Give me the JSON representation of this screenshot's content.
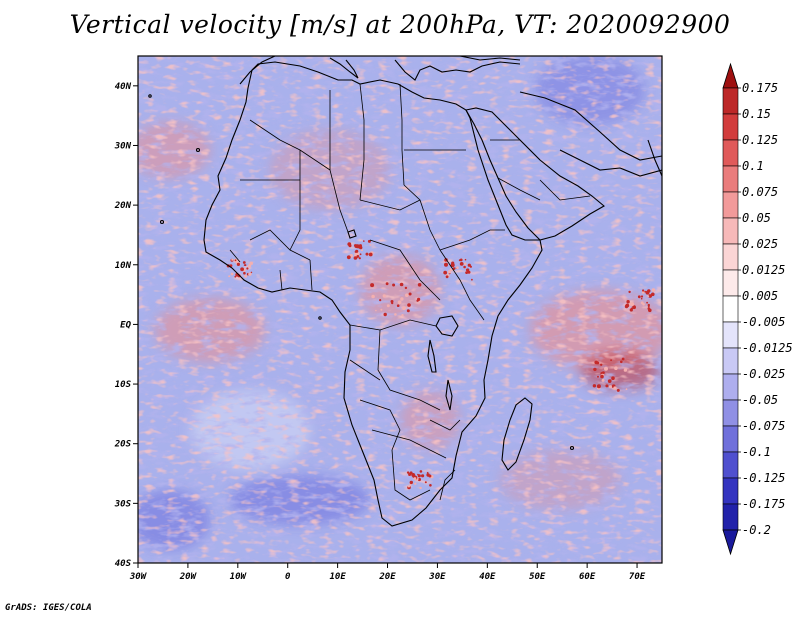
{
  "title": "Vertical velocity [m/s] at 200hPa, VT: 2020092900",
  "credit": "GrADS: IGES/COLA",
  "map": {
    "lon_range": [
      -30,
      75
    ],
    "lat_range": [
      -40,
      45
    ],
    "lon_ticks": [
      {
        "value": -30,
        "label": "30W"
      },
      {
        "value": -20,
        "label": "20W"
      },
      {
        "value": -10,
        "label": "10W"
      },
      {
        "value": 0,
        "label": "0"
      },
      {
        "value": 10,
        "label": "10E"
      },
      {
        "value": 20,
        "label": "20E"
      },
      {
        "value": 30,
        "label": "30E"
      },
      {
        "value": 40,
        "label": "40E"
      },
      {
        "value": 50,
        "label": "50E"
      },
      {
        "value": 60,
        "label": "60E"
      },
      {
        "value": 70,
        "label": "70E"
      }
    ],
    "lat_ticks": [
      {
        "value": 40,
        "label": "40N"
      },
      {
        "value": 30,
        "label": "30N"
      },
      {
        "value": 20,
        "label": "20N"
      },
      {
        "value": 10,
        "label": "10N"
      },
      {
        "value": 0,
        "label": "EQ"
      },
      {
        "value": -10,
        "label": "10S"
      },
      {
        "value": -20,
        "label": "20S"
      },
      {
        "value": -30,
        "label": "30S"
      },
      {
        "value": -40,
        "label": "40S"
      }
    ]
  },
  "colorbar": {
    "levels": [
      {
        "label": "0.175",
        "color": "#a51c1c"
      },
      {
        "label": "0.15",
        "color": "#bd2828"
      },
      {
        "label": "0.125",
        "color": "#d23c3c"
      },
      {
        "label": "0.1",
        "color": "#e05a5a"
      },
      {
        "label": "0.075",
        "color": "#ea7c7c"
      },
      {
        "label": "0.05",
        "color": "#f29a9a"
      },
      {
        "label": "0.025",
        "color": "#f7b9b9"
      },
      {
        "label": "0.0125",
        "color": "#fbd5d5"
      },
      {
        "label": "0.005",
        "color": "#fdeaea"
      },
      {
        "label": "-0.005",
        "color": "#ffffff"
      },
      {
        "label": "-0.0125",
        "color": "#e4e4fb"
      },
      {
        "label": "-0.025",
        "color": "#c9c9f5"
      },
      {
        "label": "-0.05",
        "color": "#aeaeee"
      },
      {
        "label": "-0.075",
        "color": "#9090e5"
      },
      {
        "label": "-0.1",
        "color": "#7070db"
      },
      {
        "label": "-0.125",
        "color": "#5050cf"
      },
      {
        "label": "-0.175",
        "color": "#3434c0"
      },
      {
        "label": "-0.2",
        "color": "#2222aa"
      }
    ],
    "top_arrow_color": "#9e1010",
    "bottom_arrow_color": "#1a1a9c"
  },
  "colors": {
    "base_field": "#a9b1ec",
    "positive": "#ef8c8c",
    "strong_positive": "#c42a2a",
    "negative": "#4b4bd6"
  }
}
